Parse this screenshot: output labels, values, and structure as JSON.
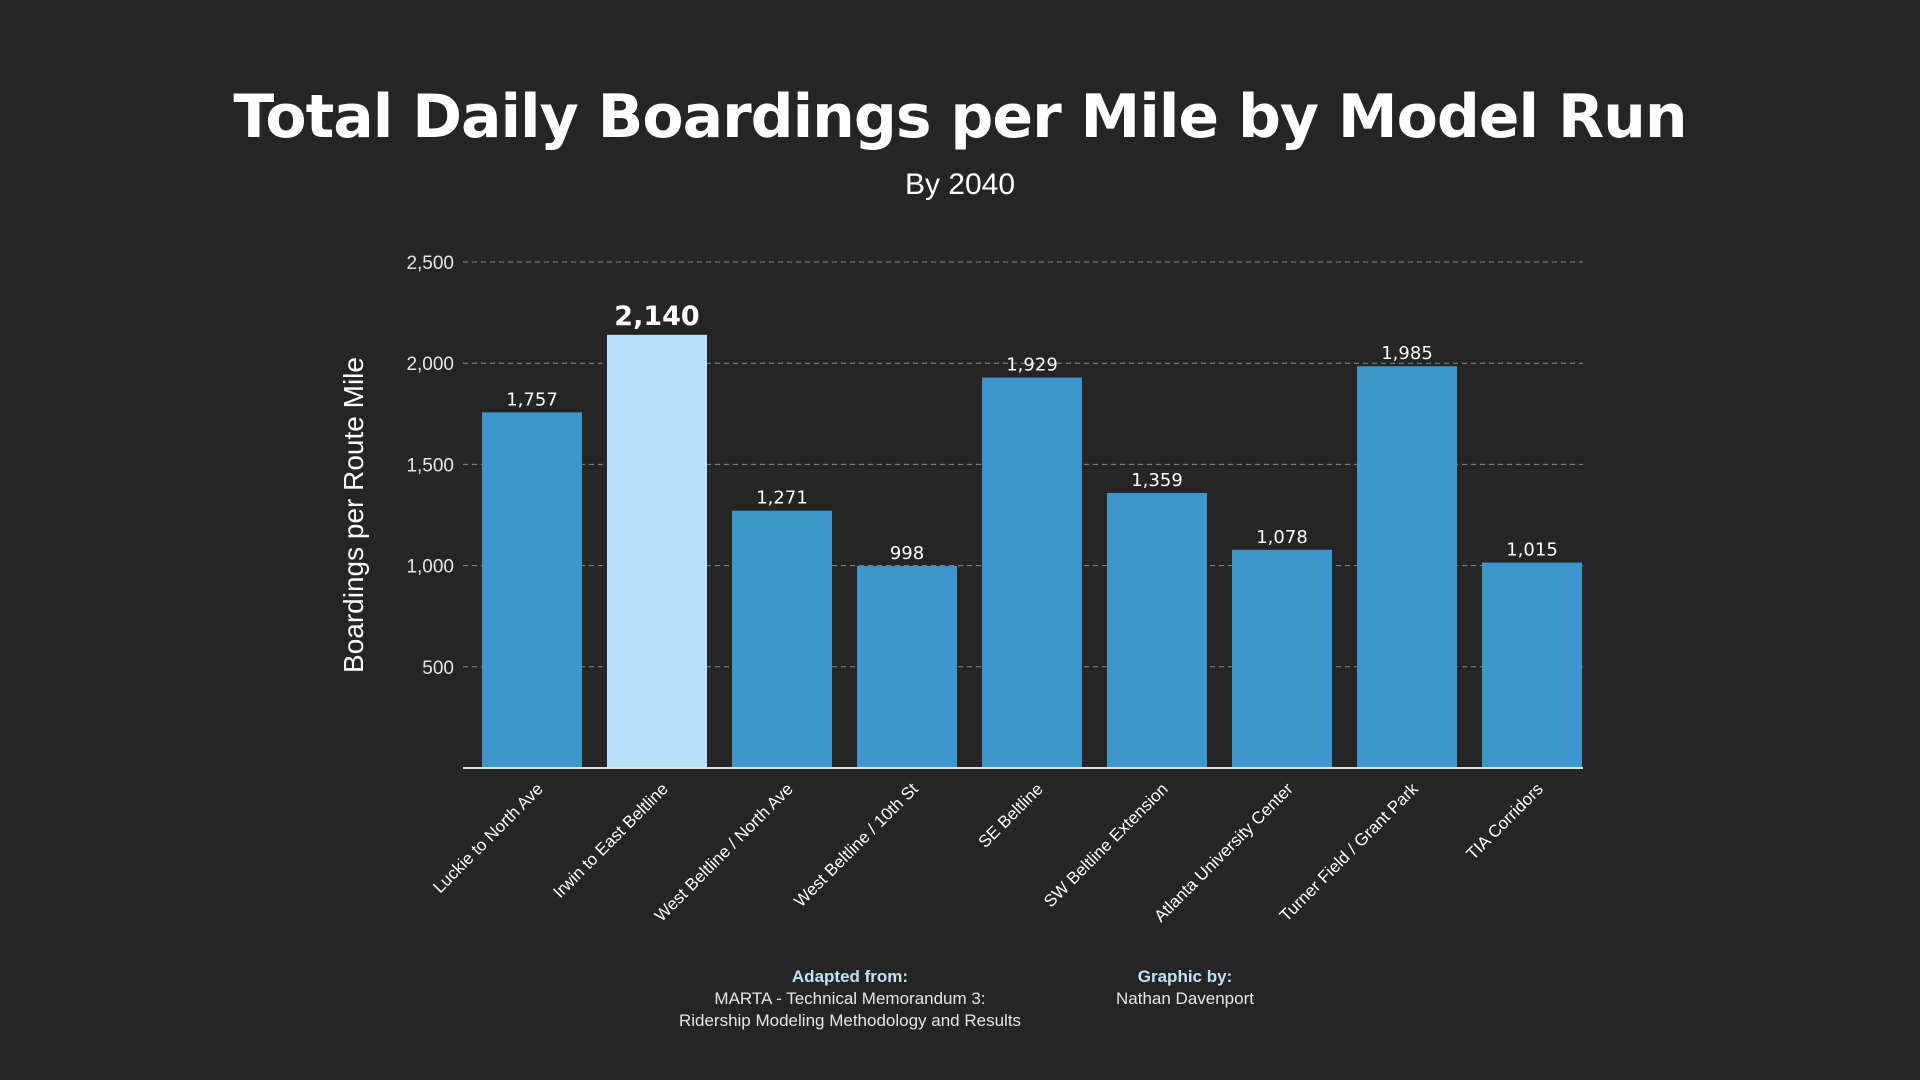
{
  "chart_data": {
    "type": "bar",
    "title": "Total Daily Boardings per Mile by Model Run",
    "subtitle": "By 2040",
    "ylabel": "Boardings per Route Mile",
    "xlabel": "",
    "ylim": [
      0,
      2500
    ],
    "yticks": [
      500,
      1000,
      1500,
      2000,
      2500
    ],
    "ytick_labels": [
      "500",
      "1,000",
      "1,500",
      "2,000",
      "2,500"
    ],
    "grid": true,
    "categories": [
      "Luckie to North Ave",
      "Irwin to East Beltline",
      "West Beltline / North Ave",
      "West Beltline / 10th St",
      "SE Beltline",
      "SW Beltline Extension",
      "Atlanta University Center",
      "Turner Field / Grant Park",
      "TIA Corridors"
    ],
    "values": [
      1757,
      2140,
      1271,
      998,
      1929,
      1359,
      1078,
      1985,
      1015
    ],
    "value_labels": [
      "1,757",
      "2,140",
      "1,271",
      "998",
      "1,929",
      "1,359",
      "1,078",
      "1,985",
      "1,015"
    ],
    "highlight_index": 1,
    "colors": {
      "bar": "#3d96cc",
      "highlight": "#b8e2fc",
      "background": "#252525",
      "grid": "#8a8a8a",
      "axis": "#e0e0e0"
    }
  },
  "credits": {
    "source_heading": "Adapted from:",
    "source_line1": "MARTA - Technical Memorandum 3:",
    "source_line2": "Ridership Modeling Methodology and Results",
    "graphic_heading": "Graphic by:",
    "graphic_author": "Nathan Davenport"
  }
}
